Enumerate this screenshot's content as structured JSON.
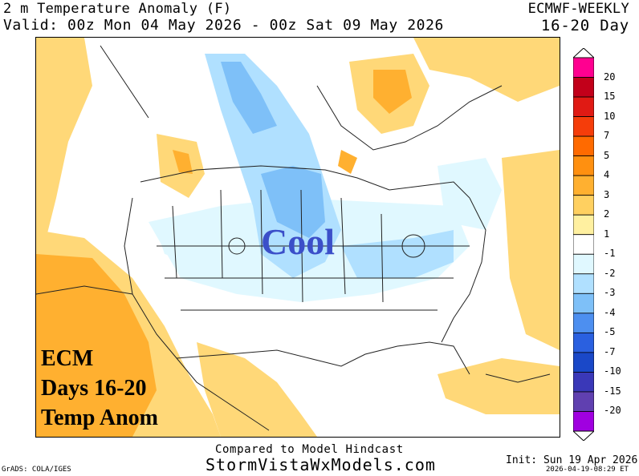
{
  "header": {
    "title": "2 m Temperature Anomaly (F)",
    "valid": "Valid: 00z Mon 04 May 2026 - 00z Sat 09 May 2026",
    "model": "ECMWF-WEEKLY",
    "period": "16-20 Day"
  },
  "map": {
    "cool_label": "Cool",
    "annotation_lines": [
      "ECM",
      "Days 16-20",
      "Temp Anom"
    ]
  },
  "colorbar": {
    "levels": [
      "20",
      "15",
      "10",
      "7",
      "5",
      "4",
      "3",
      "2",
      "1",
      "-1",
      "-2",
      "-3",
      "-4",
      "-5",
      "-7",
      "-10",
      "-15",
      "-20"
    ],
    "colors": [
      "#ff0090",
      "#c2001a",
      "#e01a14",
      "#f53d0a",
      "#ff6a00",
      "#ff9010",
      "#ffb030",
      "#ffd060",
      "#fff0a0",
      "#ffffff",
      "#e0f8ff",
      "#b0e0ff",
      "#7ec0f8",
      "#4d8ff0",
      "#2a60e0",
      "#1a48c8",
      "#3a38b8",
      "#6040b0",
      "#a000e0"
    ]
  },
  "footer": {
    "compared": "Compared to Model Hindcast",
    "site": "StormVistaWxModels.com",
    "grads": "GrADS: COLA/IGES",
    "init": "Init: Sun 19 Apr 2026",
    "stamp": "2026-04-19-08:29 ET"
  }
}
